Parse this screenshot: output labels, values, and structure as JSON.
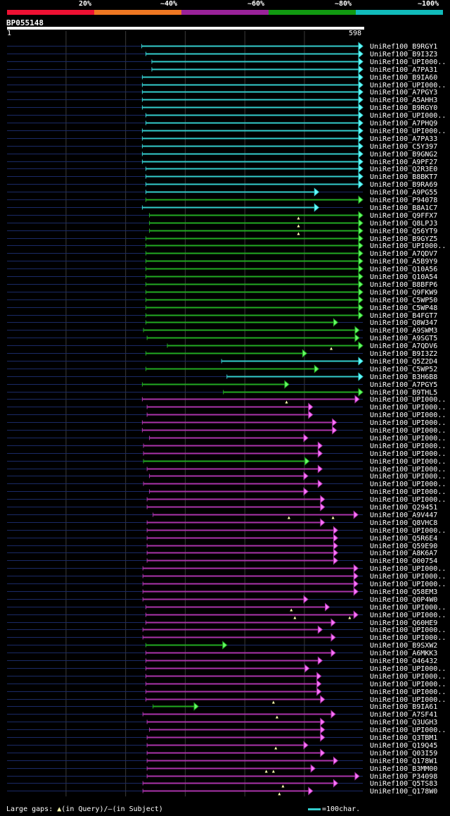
{
  "query": {
    "id": "BP055148",
    "start": "1",
    "end": "598",
    "length": 598
  },
  "legend": [
    {
      "label": "20%",
      "color": "#ee1133"
    },
    {
      "label": "~40%",
      "color": "#ee7722"
    },
    {
      "label": "~60%",
      "color": "#992299"
    },
    {
      "label": "~80%",
      "color": "#119911"
    },
    {
      "label": "~100%",
      "color": "#11bbbb"
    }
  ],
  "footer": {
    "gaps_text": "Large gaps:",
    "in_query": "(in Query)/",
    "in_subject": "(in Subject)",
    "scale_text": "=100char."
  },
  "chart_data": {
    "type": "alignment",
    "x_range": [
      1,
      598
    ],
    "hits": [
      {
        "name": "UniRef100_B9RGY1",
        "start": 227,
        "end": 598,
        "color": "cyan"
      },
      {
        "name": "UniRef100_B9I3Z3",
        "start": 234,
        "end": 598,
        "color": "cyan"
      },
      {
        "name": "UniRef100_UPI000..",
        "start": 244,
        "end": 598,
        "color": "cyan"
      },
      {
        "name": "UniRef100_A7PA31",
        "start": 244,
        "end": 598,
        "color": "cyan"
      },
      {
        "name": "UniRef100_B9IA60",
        "start": 228,
        "end": 598,
        "color": "cyan"
      },
      {
        "name": "UniRef100_UPI000..",
        "start": 228,
        "end": 598,
        "color": "cyan"
      },
      {
        "name": "UniRef100_A7PGY3",
        "start": 228,
        "end": 598,
        "color": "cyan"
      },
      {
        "name": "UniRef100_A5AHH3",
        "start": 228,
        "end": 598,
        "color": "cyan"
      },
      {
        "name": "UniRef100_B9RGY0",
        "start": 228,
        "end": 598,
        "color": "cyan"
      },
      {
        "name": "UniRef100_UPI000..",
        "start": 234,
        "end": 598,
        "color": "cyan"
      },
      {
        "name": "UniRef100_A7PHQ9",
        "start": 234,
        "end": 598,
        "color": "cyan"
      },
      {
        "name": "UniRef100_UPI000..",
        "start": 228,
        "end": 598,
        "color": "cyan"
      },
      {
        "name": "UniRef100_A7PA33",
        "start": 228,
        "end": 598,
        "color": "cyan"
      },
      {
        "name": "UniRef100_C5Y397",
        "start": 228,
        "end": 598,
        "color": "cyan"
      },
      {
        "name": "UniRef100_B9GNG2",
        "start": 228,
        "end": 598,
        "color": "cyan"
      },
      {
        "name": "UniRef100_A9PF27",
        "start": 228,
        "end": 598,
        "color": "cyan"
      },
      {
        "name": "UniRef100_Q2R3E0",
        "start": 234,
        "end": 598,
        "color": "cyan"
      },
      {
        "name": "UniRef100_B8BKT7",
        "start": 234,
        "end": 598,
        "color": "cyan"
      },
      {
        "name": "UniRef100_B9RA69",
        "start": 234,
        "end": 598,
        "color": "cyan"
      },
      {
        "name": "UniRef100_A9PG55",
        "start": 234,
        "end": 524,
        "color": "cyan"
      },
      {
        "name": "UniRef100_P94078",
        "start": 234,
        "end": 598,
        "color": "green"
      },
      {
        "name": "UniRef100_B8A1C7",
        "start": 228,
        "end": 524,
        "color": "cyan"
      },
      {
        "name": "UniRef100_Q9FFX7",
        "start": 240,
        "end": 598,
        "color": "green",
        "gaps": [
          490
        ]
      },
      {
        "name": "UniRef100_Q8LPJ3",
        "start": 240,
        "end": 598,
        "color": "green",
        "gaps": [
          490
        ]
      },
      {
        "name": "UniRef100_Q56YT9",
        "start": 240,
        "end": 598,
        "color": "green",
        "gaps": [
          490
        ]
      },
      {
        "name": "UniRef100_B9GYZ5",
        "start": 234,
        "end": 598,
        "color": "green"
      },
      {
        "name": "UniRef100_UPI000..",
        "start": 234,
        "end": 598,
        "color": "green"
      },
      {
        "name": "UniRef100_A7QDV7",
        "start": 234,
        "end": 598,
        "color": "green"
      },
      {
        "name": "UniRef100_A5B9Y9",
        "start": 234,
        "end": 598,
        "color": "green"
      },
      {
        "name": "UniRef100_Q10A56",
        "start": 234,
        "end": 598,
        "color": "green"
      },
      {
        "name": "UniRef100_Q10A54",
        "start": 234,
        "end": 598,
        "color": "green"
      },
      {
        "name": "UniRef100_B8BFP6",
        "start": 234,
        "end": 598,
        "color": "green"
      },
      {
        "name": "UniRef100_Q9FKW9",
        "start": 234,
        "end": 598,
        "color": "green"
      },
      {
        "name": "UniRef100_C5WP50",
        "start": 234,
        "end": 598,
        "color": "green"
      },
      {
        "name": "UniRef100_C5WP48",
        "start": 234,
        "end": 598,
        "color": "green"
      },
      {
        "name": "UniRef100_B4FGT7",
        "start": 234,
        "end": 598,
        "color": "green"
      },
      {
        "name": "UniRef100_Q8W347",
        "start": 234,
        "end": 556,
        "color": "green"
      },
      {
        "name": "UniRef100_A9SWM3",
        "start": 230,
        "end": 592,
        "color": "green"
      },
      {
        "name": "UniRef100_A9SGT5",
        "start": 236,
        "end": 592,
        "color": "green"
      },
      {
        "name": "UniRef100_A7QDV6",
        "start": 270,
        "end": 598,
        "color": "green",
        "gaps": [
          545
        ]
      },
      {
        "name": "UniRef100_B9I3Z2",
        "start": 234,
        "end": 504,
        "color": "green"
      },
      {
        "name": "UniRef100_Q5Z2D4",
        "start": 361,
        "end": 598,
        "color": "cyan"
      },
      {
        "name": "UniRef100_C5WP52",
        "start": 234,
        "end": 524,
        "color": "green"
      },
      {
        "name": "UniRef100_B3H6B8",
        "start": 370,
        "end": 598,
        "color": "cyan"
      },
      {
        "name": "UniRef100_A7PGY5",
        "start": 228,
        "end": 474,
        "color": "green"
      },
      {
        "name": "UniRef100_B9THL5",
        "start": 364,
        "end": 598,
        "color": "green"
      },
      {
        "name": "UniRef100_UPI000..",
        "start": 228,
        "end": 592,
        "color": "magenta",
        "gaps": [
          470
        ]
      },
      {
        "name": "UniRef100_UPI000..",
        "start": 236,
        "end": 514,
        "color": "magenta"
      },
      {
        "name": "UniRef100_UPI000..",
        "start": 236,
        "end": 514,
        "color": "magenta"
      },
      {
        "name": "UniRef100_UPI000..",
        "start": 228,
        "end": 554,
        "color": "magenta"
      },
      {
        "name": "UniRef100_UPI000..",
        "start": 228,
        "end": 554,
        "color": "magenta"
      },
      {
        "name": "UniRef100_UPI000..",
        "start": 240,
        "end": 506,
        "color": "magenta"
      },
      {
        "name": "UniRef100_UPI000..",
        "start": 230,
        "end": 530,
        "color": "magenta"
      },
      {
        "name": "UniRef100_UPI000..",
        "start": 230,
        "end": 530,
        "color": "magenta"
      },
      {
        "name": "UniRef100_UPI000..",
        "start": 230,
        "end": 508,
        "color": "green"
      },
      {
        "name": "UniRef100_UPI000..",
        "start": 236,
        "end": 530,
        "color": "magenta"
      },
      {
        "name": "UniRef100_UPI000..",
        "start": 240,
        "end": 506,
        "color": "magenta"
      },
      {
        "name": "UniRef100_UPI000..",
        "start": 230,
        "end": 530,
        "color": "magenta"
      },
      {
        "name": "UniRef100_UPI000..",
        "start": 240,
        "end": 506,
        "color": "magenta"
      },
      {
        "name": "UniRef100_UPI000..",
        "start": 236,
        "end": 534,
        "color": "magenta"
      },
      {
        "name": "UniRef100_Q29451",
        "start": 236,
        "end": 534,
        "color": "magenta"
      },
      {
        "name": "UniRef100_A9V447",
        "start": 246,
        "end": 590,
        "color": "magenta",
        "gaps": [
          474,
          548
        ]
      },
      {
        "name": "UniRef100_Q8VHC8",
        "start": 236,
        "end": 534,
        "color": "magenta"
      },
      {
        "name": "UniRef100_UPI000..",
        "start": 236,
        "end": 556,
        "color": "magenta"
      },
      {
        "name": "UniRef100_Q5R6E4",
        "start": 236,
        "end": 556,
        "color": "magenta"
      },
      {
        "name": "UniRef100_Q59E90",
        "start": 236,
        "end": 556,
        "color": "magenta"
      },
      {
        "name": "UniRef100_A8K6A7",
        "start": 236,
        "end": 556,
        "color": "magenta"
      },
      {
        "name": "UniRef100_O00754",
        "start": 236,
        "end": 556,
        "color": "magenta"
      },
      {
        "name": "UniRef100_UPI000..",
        "start": 229,
        "end": 590,
        "color": "magenta"
      },
      {
        "name": "UniRef100_UPI000..",
        "start": 229,
        "end": 590,
        "color": "magenta"
      },
      {
        "name": "UniRef100_UPI000..",
        "start": 229,
        "end": 590,
        "color": "magenta"
      },
      {
        "name": "UniRef100_Q58EM3",
        "start": 229,
        "end": 590,
        "color": "magenta"
      },
      {
        "name": "UniRef100_Q0P4W0",
        "start": 229,
        "end": 506,
        "color": "magenta"
      },
      {
        "name": "UniRef100_UPI000..",
        "start": 234,
        "end": 542,
        "color": "magenta",
        "gaps": [
          478
        ]
      },
      {
        "name": "UniRef100_UPI000..",
        "start": 234,
        "end": 590,
        "color": "magenta",
        "gaps": [
          484,
          576
        ]
      },
      {
        "name": "UniRef100_Q60HE9",
        "start": 234,
        "end": 552,
        "color": "magenta"
      },
      {
        "name": "UniRef100_UPI000..",
        "start": 229,
        "end": 530,
        "color": "magenta"
      },
      {
        "name": "UniRef100_UPI000..",
        "start": 229,
        "end": 552,
        "color": "magenta"
      },
      {
        "name": "UniRef100_B9SXW2",
        "start": 234,
        "end": 370,
        "color": "green"
      },
      {
        "name": "UniRef100_A6MKK3",
        "start": 234,
        "end": 552,
        "color": "magenta"
      },
      {
        "name": "UniRef100_O46432",
        "start": 234,
        "end": 530,
        "color": "magenta"
      },
      {
        "name": "UniRef100_UPI000..",
        "start": 234,
        "end": 508,
        "color": "magenta"
      },
      {
        "name": "UniRef100_UPI000..",
        "start": 234,
        "end": 528,
        "color": "magenta"
      },
      {
        "name": "UniRef100_UPI000..",
        "start": 234,
        "end": 528,
        "color": "magenta"
      },
      {
        "name": "UniRef100_UPI000..",
        "start": 234,
        "end": 528,
        "color": "magenta"
      },
      {
        "name": "UniRef100_UPI000..",
        "start": 234,
        "end": 534,
        "color": "magenta",
        "gaps": [
          448
        ]
      },
      {
        "name": "UniRef100_B9IA61",
        "start": 246,
        "end": 322,
        "color": "green"
      },
      {
        "name": "UniRef100_A7SF41",
        "start": 229,
        "end": 552,
        "color": "magenta",
        "gaps": [
          454
        ]
      },
      {
        "name": "UniRef100_Q3UGH3",
        "start": 236,
        "end": 534,
        "color": "magenta"
      },
      {
        "name": "UniRef100_UPI000..",
        "start": 240,
        "end": 534,
        "color": "magenta"
      },
      {
        "name": "UniRef100_Q3TBM1",
        "start": 236,
        "end": 534,
        "color": "magenta"
      },
      {
        "name": "UniRef100_Q19Q45",
        "start": 236,
        "end": 506,
        "color": "magenta",
        "gaps": [
          452
        ]
      },
      {
        "name": "UniRef100_Q03I59",
        "start": 236,
        "end": 534,
        "color": "magenta"
      },
      {
        "name": "UniRef100_Q178W1",
        "start": 236,
        "end": 556,
        "color": "magenta"
      },
      {
        "name": "UniRef100_B3MM00",
        "start": 236,
        "end": 518,
        "color": "magenta",
        "gaps": [
          436,
          448
        ]
      },
      {
        "name": "UniRef100_P34098",
        "start": 236,
        "end": 592,
        "color": "magenta"
      },
      {
        "name": "UniRef100_Q5TS83",
        "start": 229,
        "end": 556,
        "color": "magenta",
        "gaps": [
          464
        ]
      },
      {
        "name": "UniRef100_Q178W0",
        "start": 229,
        "end": 514,
        "color": "magenta",
        "gaps": [
          458
        ]
      }
    ]
  }
}
